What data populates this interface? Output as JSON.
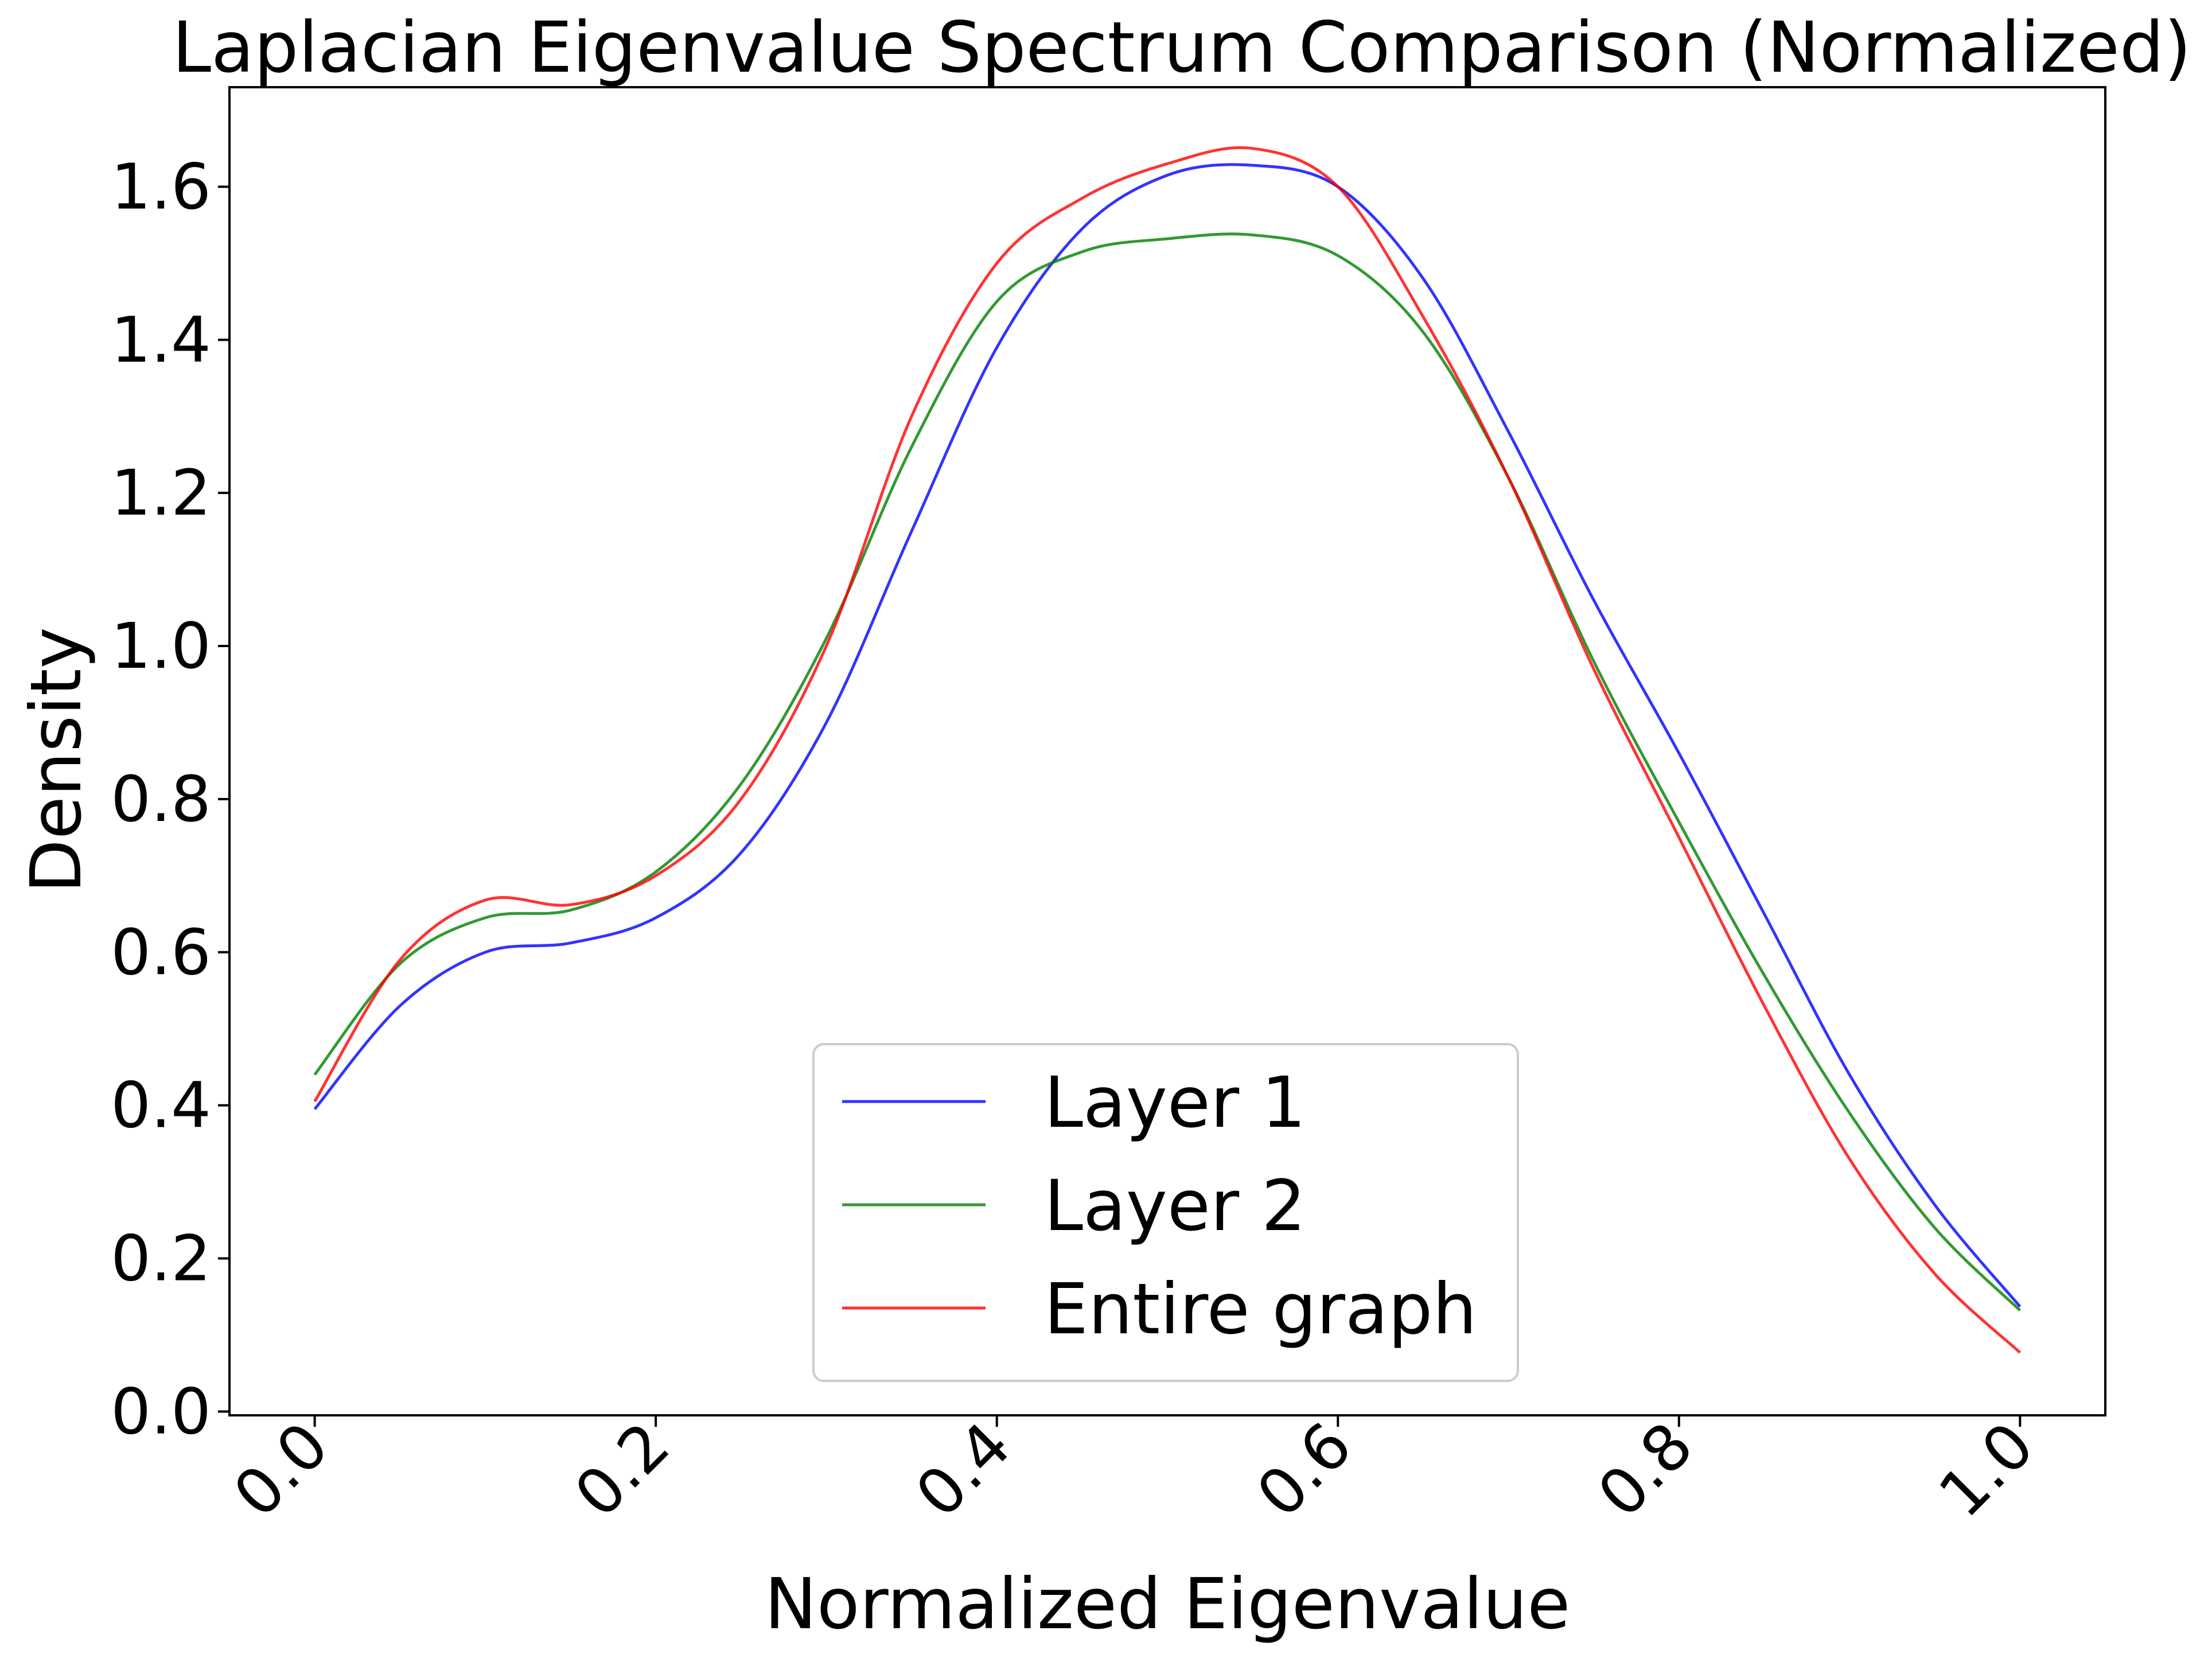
{
  "chart_data": {
    "type": "line",
    "title": "Laplacian Eigenvalue Spectrum Comparison (Normalized)",
    "xlabel": "Normalized Eigenvalue",
    "ylabel": "Density",
    "xlim": [
      -0.05,
      1.05
    ],
    "ylim": [
      -0.005,
      1.73
    ],
    "xticks": [
      0.0,
      0.2,
      0.4,
      0.6,
      0.8,
      1.0
    ],
    "xtick_labels": [
      "0.0",
      "0.2",
      "0.4",
      "0.6",
      "0.8",
      "1.0"
    ],
    "xtick_rotation": 45,
    "yticks": [
      0.0,
      0.2,
      0.4,
      0.6,
      0.8,
      1.0,
      1.2,
      1.4,
      1.6
    ],
    "ytick_labels": [
      "0.0",
      "0.2",
      "0.4",
      "0.6",
      "0.8",
      "1.0",
      "1.2",
      "1.4",
      "1.6"
    ],
    "grid": false,
    "legend_position": "lower-center",
    "x": [
      0.0,
      0.05,
      0.1,
      0.15,
      0.2,
      0.25,
      0.3,
      0.35,
      0.4,
      0.45,
      0.5,
      0.55,
      0.6,
      0.65,
      0.7,
      0.75,
      0.8,
      0.85,
      0.9,
      0.95,
      1.0
    ],
    "series": [
      {
        "name": "Layer 1",
        "color": "#0000ff",
        "values": [
          0.395,
          0.53,
          0.6,
          0.612,
          0.645,
          0.73,
          0.9,
          1.15,
          1.39,
          1.545,
          1.615,
          1.628,
          1.6,
          1.48,
          1.28,
          1.06,
          0.86,
          0.65,
          0.44,
          0.27,
          0.137
        ]
      },
      {
        "name": "Layer 2",
        "color": "#008000",
        "values": [
          0.44,
          0.585,
          0.645,
          0.655,
          0.705,
          0.82,
          1.01,
          1.26,
          1.45,
          1.515,
          1.532,
          1.537,
          1.51,
          1.41,
          1.22,
          0.98,
          0.77,
          0.57,
          0.39,
          0.24,
          0.132
        ]
      },
      {
        "name": "Entire graph",
        "color": "#ff0000",
        "values": [
          0.405,
          0.59,
          0.668,
          0.662,
          0.7,
          0.8,
          1.0,
          1.3,
          1.5,
          1.585,
          1.63,
          1.65,
          1.6,
          1.43,
          1.22,
          0.97,
          0.75,
          0.53,
          0.33,
          0.18,
          0.077
        ]
      }
    ]
  }
}
